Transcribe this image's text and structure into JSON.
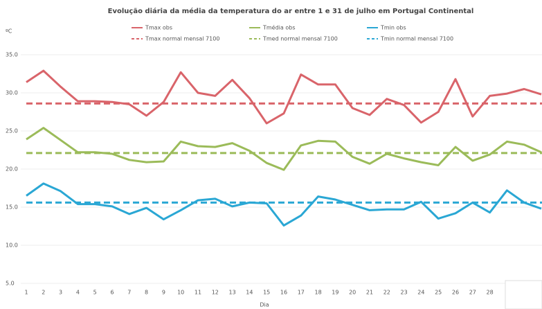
{
  "chart_data": {
    "type": "line",
    "title": "Evolução diária da média da temperatura do ar entre 1 e 31 de julho em Portugal Continental",
    "y_label": "ºC",
    "x_label": "Dia",
    "categories": [
      "1",
      "2",
      "3",
      "4",
      "5",
      "6",
      "7",
      "8",
      "9",
      "10",
      "11",
      "12",
      "13",
      "14",
      "15",
      "16",
      "17",
      "18",
      "19",
      "20",
      "21",
      "22",
      "23",
      "24",
      "25",
      "26",
      "27",
      "28",
      null,
      null,
      null
    ],
    "series": [
      {
        "name": "Tmax obs",
        "color": "#d9646a",
        "values": [
          31.4,
          32.9,
          30.8,
          28.9,
          28.9,
          28.8,
          28.5,
          27.0,
          28.8,
          32.7,
          30.0,
          29.6,
          31.7,
          29.3,
          26.0,
          27.3,
          32.4,
          31.1,
          31.1,
          28.0,
          27.1,
          29.2,
          28.4,
          26.1,
          27.5,
          31.8,
          26.9,
          29.6,
          29.9,
          30.5,
          29.8
        ]
      },
      {
        "name": "Tmédia obs",
        "color": "#9bbb59",
        "values": [
          23.9,
          25.4,
          23.8,
          22.2,
          22.2,
          22.0,
          21.2,
          20.9,
          21.0,
          23.6,
          23.0,
          22.9,
          23.4,
          22.4,
          20.8,
          19.9,
          23.1,
          23.7,
          23.6,
          21.6,
          20.7,
          22.0,
          21.4,
          20.9,
          20.5,
          22.9,
          21.1,
          21.9,
          23.6,
          23.2,
          22.2
        ]
      },
      {
        "name": "Tmin obs",
        "color": "#2aa7d4",
        "values": [
          16.5,
          18.1,
          17.1,
          15.4,
          15.4,
          15.1,
          14.1,
          14.9,
          13.4,
          14.6,
          15.9,
          16.1,
          15.1,
          15.6,
          15.5,
          12.6,
          13.9,
          16.4,
          16.0,
          15.3,
          14.6,
          14.7,
          14.7,
          15.7,
          13.5,
          14.2,
          15.6,
          14.3,
          17.2,
          15.6,
          14.8
        ]
      }
    ],
    "reference_lines": [
      {
        "name": "Tmax normal mensal 7100",
        "color": "#d9646a",
        "value": 28.6
      },
      {
        "name": "Tmed normal mensal 7100",
        "color": "#9bbb59",
        "value": 22.1
      },
      {
        "name": "Tmin normal mensal 7100",
        "color": "#2aa7d4",
        "value": 15.6
      }
    ],
    "ylim": [
      5,
      35
    ],
    "yticks": [
      {
        "value": 5,
        "label": "5.0"
      },
      {
        "value": 10,
        "label": "10.0"
      },
      {
        "value": 15,
        "label": "15.0"
      },
      {
        "value": 20,
        "label": "20.0"
      },
      {
        "value": 25,
        "label": "25.0"
      },
      {
        "value": 30,
        "label": "30.0"
      },
      {
        "value": 35,
        "label": "35.0"
      }
    ],
    "grid": true
  }
}
